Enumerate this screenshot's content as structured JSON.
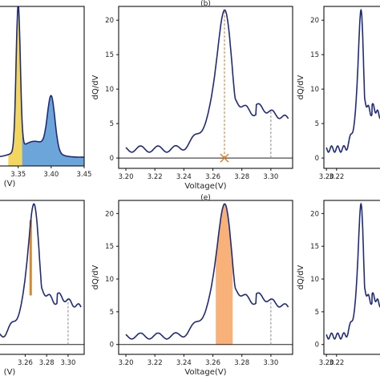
{
  "panels": [
    {
      "id": "a",
      "ylabel": "",
      "xlabel": "(V)",
      "xtick_labels": [
        "3.35",
        "3.40",
        "3.45"
      ],
      "ytick_labels": [],
      "panel_label": ""
    },
    {
      "id": "b",
      "ylabel": "dQ/dV",
      "xlabel": "Voltage(V)",
      "xtick_labels": [
        "3.20",
        "3.22",
        "3.24",
        "3.26",
        "3.28",
        "3.30"
      ],
      "ytick_labels": [
        "0",
        "5",
        "10",
        "15",
        "20"
      ],
      "panel_label": "(b)"
    },
    {
      "id": "c",
      "ylabel": "dQ/dV",
      "xlabel": "",
      "xtick_labels": [
        "3.20",
        "3.22"
      ],
      "ytick_labels": [
        "0",
        "5",
        "10",
        "15",
        "20"
      ],
      "panel_label": ""
    },
    {
      "id": "d",
      "ylabel": "",
      "xlabel": "(V)",
      "xtick_labels": [
        "3.26",
        "3.28",
        "3.30"
      ],
      "ytick_labels": [],
      "panel_label": ""
    },
    {
      "id": "e",
      "ylabel": "dQ/dV",
      "xlabel": "Voltage(V)",
      "xtick_labels": [
        "3.20",
        "3.22",
        "3.24",
        "3.26",
        "3.28",
        "3.30"
      ],
      "ytick_labels": [
        "0",
        "5",
        "10",
        "15",
        "20"
      ],
      "panel_label": "(e)"
    },
    {
      "id": "f",
      "ylabel": "dQ/dV",
      "xlabel": "",
      "xtick_labels": [
        "3.20",
        "3.22"
      ],
      "ytick_labels": [
        "0",
        "5",
        "10",
        "15",
        "20"
      ],
      "panel_label": ""
    }
  ],
  "chart_data": [
    {
      "panel": "a",
      "type": "area",
      "xlim": [
        3.32,
        3.45
      ],
      "ylim": [
        0,
        22
      ],
      "fills": [
        {
          "x_range": [
            3.335,
            3.356
          ],
          "color": "#f2d24b"
        },
        {
          "x_range": [
            3.356,
            3.45
          ],
          "color": "#5b9bd5"
        }
      ],
      "peaks": [
        {
          "x": 3.35,
          "y": 20.5
        },
        {
          "x": 3.4,
          "y": 8.2
        }
      ],
      "line_color": "#1f2a7a"
    },
    {
      "panel": "b",
      "type": "line",
      "xlim": [
        3.195,
        3.315
      ],
      "ylim": [
        -1.5,
        22
      ],
      "peak": {
        "x": 3.268,
        "y": 20.6
      },
      "marker": {
        "x": 3.268,
        "y": 0,
        "color": "#e07b1f"
      },
      "vlines": [
        {
          "x": 3.268,
          "color": "#c77a1a",
          "style": "dashed"
        },
        {
          "x": 3.3,
          "color": "#888888",
          "style": "dashed"
        }
      ],
      "baseline": 0,
      "line_color": "#1f2a7a"
    },
    {
      "panel": "c",
      "type": "line",
      "xlim": [
        3.195,
        3.315
      ],
      "ylim": [
        -1.5,
        22
      ],
      "line_color": "#1f2a7a"
    },
    {
      "panel": "d",
      "type": "line",
      "xlim": [
        3.235,
        3.315
      ],
      "ylim": [
        -1.5,
        22
      ],
      "peak": {
        "x": 3.268,
        "y": 20.6
      },
      "highlight": {
        "x_range": [
          3.264,
          3.266
        ],
        "y_range": [
          7.5,
          19
        ],
        "color": "#d9882a"
      },
      "vlines": [
        {
          "x": 3.3,
          "color": "#888888",
          "style": "dashed"
        }
      ],
      "baseline": 0,
      "line_color": "#1f2a7a"
    },
    {
      "panel": "e",
      "type": "area",
      "xlim": [
        3.195,
        3.315
      ],
      "ylim": [
        -1.5,
        22
      ],
      "peak": {
        "x": 3.268,
        "y": 20.6
      },
      "fills": [
        {
          "x_range": [
            3.262,
            3.274
          ],
          "color": "#f6a86a"
        }
      ],
      "vlines": [
        {
          "x": 3.3,
          "color": "#888888",
          "style": "dashed"
        }
      ],
      "baseline": 0,
      "line_color": "#1f2a7a"
    },
    {
      "panel": "f",
      "type": "line",
      "xlim": [
        3.195,
        3.315
      ],
      "ylim": [
        -1.5,
        22
      ],
      "line_color": "#1f2a7a"
    }
  ]
}
